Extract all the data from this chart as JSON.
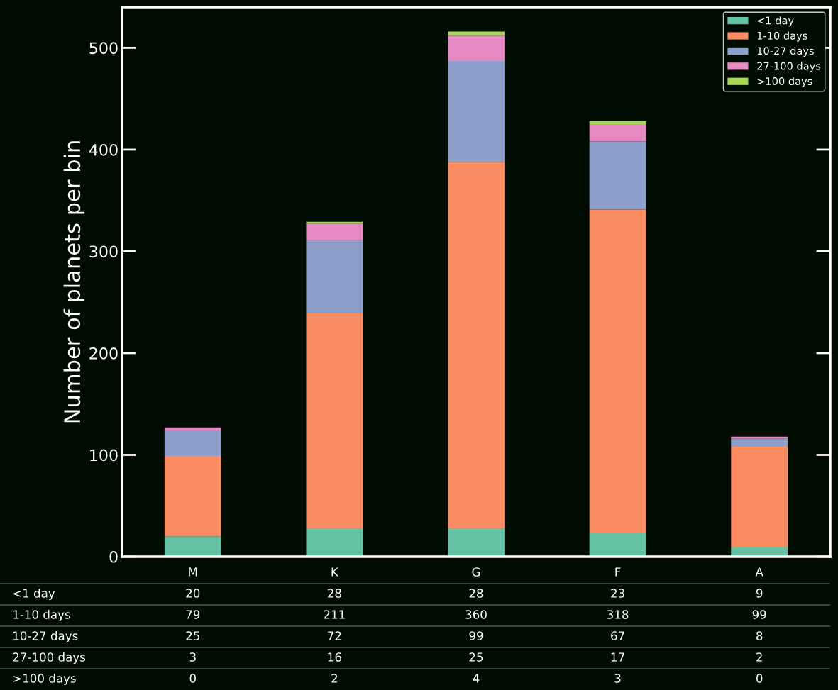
{
  "chart_data": {
    "type": "bar",
    "stacked": true,
    "ylabel": "Number of planets per bin",
    "categories": [
      "M",
      "K",
      "G",
      "F",
      "A"
    ],
    "series": [
      {
        "name": "<1 day",
        "color": "#66c2a5",
        "values": [
          20,
          28,
          28,
          23,
          9
        ]
      },
      {
        "name": "1-10 days",
        "color": "#fc8d62",
        "values": [
          79,
          211,
          360,
          318,
          99
        ]
      },
      {
        "name": "10-27 days",
        "color": "#8da0cb",
        "values": [
          25,
          72,
          99,
          67,
          8
        ]
      },
      {
        "name": "27-100 days",
        "color": "#e78ac3",
        "values": [
          3,
          16,
          25,
          17,
          2
        ]
      },
      {
        "name": ">100 days",
        "color": "#a6d854",
        "values": [
          0,
          2,
          4,
          3,
          0
        ]
      }
    ],
    "ylim": [
      0,
      540
    ],
    "yticks": [
      0,
      100,
      200,
      300,
      400,
      500
    ],
    "grid": false,
    "legend": "top right",
    "data_labels": true
  }
}
